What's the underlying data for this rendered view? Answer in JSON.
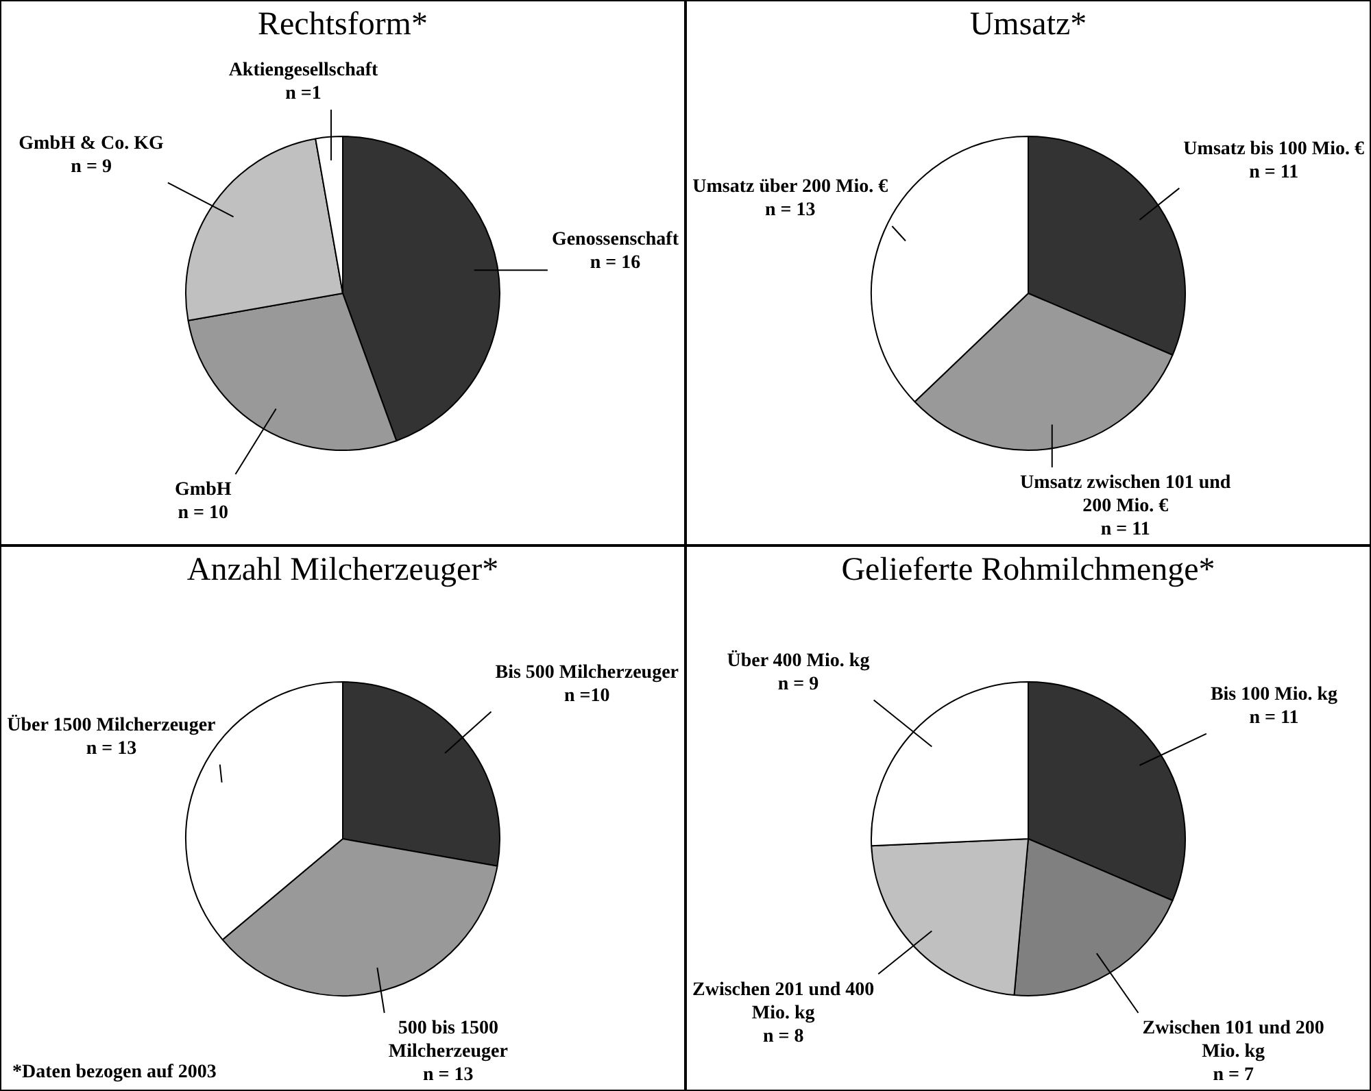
{
  "chart_data": [
    {
      "type": "pie",
      "title": "Rechtsform*",
      "categories": [
        "Genossenschaft",
        "GmbH",
        "GmbH & Co. KG",
        "Aktiengesellschaft"
      ],
      "values": [
        16,
        10,
        9,
        1
      ],
      "value_labels": [
        "n = 16",
        "n = 10",
        "n = 9",
        "n =1"
      ],
      "colors": [
        "#333333",
        "#999999",
        "#c0c0c0",
        "#ffffff"
      ]
    },
    {
      "type": "pie",
      "title": "Umsatz*",
      "categories": [
        "Umsatz bis 100 Mio. €",
        "Umsatz zwischen 101 und 200 Mio. €",
        "Umsatz über 200 Mio. €"
      ],
      "values": [
        11,
        11,
        13
      ],
      "value_labels": [
        "n = 11",
        "n = 11",
        "n = 13"
      ],
      "colors": [
        "#333333",
        "#999999",
        "#ffffff"
      ]
    },
    {
      "type": "pie",
      "title": "Anzahl Milcherzeuger*",
      "categories": [
        "Bis 500 Milcherzeuger",
        "500 bis 1500 Milcherzeuger",
        "Über 1500 Milcherzeuger"
      ],
      "values": [
        10,
        13,
        13
      ],
      "value_labels": [
        "n =10",
        "n = 13",
        "n = 13"
      ],
      "colors": [
        "#333333",
        "#999999",
        "#ffffff"
      ],
      "annotations": [
        "*Daten bezogen auf 2003"
      ]
    },
    {
      "type": "pie",
      "title": "Gelieferte Rohmilchmenge*",
      "categories": [
        "Bis 100 Mio. kg",
        "Zwischen 101 und 200 Mio. kg",
        "Zwischen 201 und 400 Mio. kg",
        "Über 400 Mio. kg"
      ],
      "values": [
        11,
        7,
        8,
        9
      ],
      "value_labels": [
        "n = 11",
        "n = 7",
        "n = 8",
        "n = 9"
      ],
      "colors": [
        "#333333",
        "#808080",
        "#c0c0c0",
        "#ffffff"
      ]
    }
  ]
}
